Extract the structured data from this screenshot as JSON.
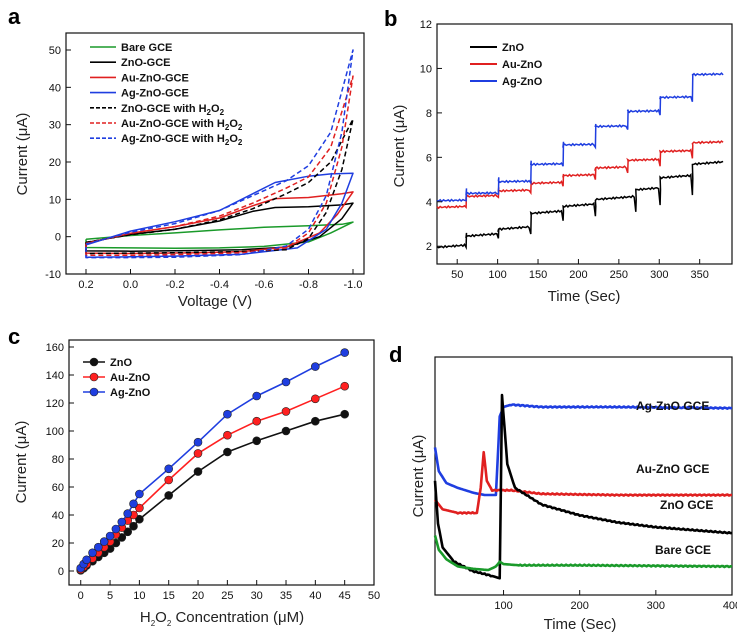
{
  "chart_data": [
    {
      "id": "a",
      "panel_label": "a",
      "type": "line",
      "xlabel": "Voltage (V)",
      "ylabel": "Current (μA)",
      "xlim": [
        0.2,
        -1.0
      ],
      "ylim": [
        -10,
        50
      ],
      "x_ticks": [
        0.2,
        0.0,
        -0.2,
        -0.4,
        -0.6,
        -0.8,
        -1.0
      ],
      "x_tick_labels": [
        "0.2",
        "0.0",
        "-0.2",
        "-0.4",
        "-0.6",
        "-0.8",
        "-1.0"
      ],
      "y_ticks": [
        -10,
        0,
        10,
        20,
        30,
        40,
        50
      ],
      "grid": false,
      "legend_position": "top-left",
      "series": [
        {
          "name": "Bare GCE",
          "color": "#1a9a2a",
          "dash": false,
          "upper": [
            [
              0.2,
              -0.7
            ],
            [
              0.0,
              0.3
            ],
            [
              -0.2,
              1.0
            ],
            [
              -0.4,
              1.8
            ],
            [
              -0.6,
              2.5
            ],
            [
              -0.8,
              2.9
            ],
            [
              -0.95,
              3.3
            ],
            [
              -1.0,
              3.9
            ]
          ],
          "lower": [
            [
              -1.0,
              3.9
            ],
            [
              -0.9,
              1.0
            ],
            [
              -0.8,
              -1.4
            ],
            [
              -0.6,
              -2.6
            ],
            [
              -0.4,
              -3.0
            ],
            [
              -0.2,
              -3.1
            ],
            [
              0.0,
              -3.0
            ],
            [
              0.2,
              -2.9
            ],
            [
              0.2,
              -0.7
            ]
          ]
        },
        {
          "name": "ZnO-GCE",
          "color": "#000000",
          "dash": false,
          "upper": [
            [
              0.2,
              -1.6
            ],
            [
              0.0,
              0.6
            ],
            [
              -0.2,
              2.0
            ],
            [
              -0.4,
              4.2
            ],
            [
              -0.55,
              6.8
            ],
            [
              -0.65,
              7.8
            ],
            [
              -0.8,
              8.0
            ],
            [
              -0.95,
              8.5
            ],
            [
              -1.0,
              9.0
            ]
          ],
          "lower": [
            [
              -1.0,
              9.0
            ],
            [
              -0.95,
              4.8
            ],
            [
              -0.85,
              0.0
            ],
            [
              -0.7,
              -2.8
            ],
            [
              -0.5,
              -3.5
            ],
            [
              -0.3,
              -3.7
            ],
            [
              0.0,
              -3.9
            ],
            [
              0.2,
              -3.8
            ],
            [
              0.2,
              -1.6
            ]
          ]
        },
        {
          "name": "Au-ZnO-GCE",
          "color": "#e02020",
          "dash": false,
          "upper": [
            [
              0.2,
              -1.8
            ],
            [
              0.0,
              0.9
            ],
            [
              -0.2,
              2.7
            ],
            [
              -0.4,
              5.0
            ],
            [
              -0.55,
              8.3
            ],
            [
              -0.65,
              10.2
            ],
            [
              -0.8,
              10.5
            ],
            [
              -0.95,
              11.5
            ],
            [
              -1.0,
              12.0
            ]
          ],
          "lower": [
            [
              -1.0,
              12.0
            ],
            [
              -0.93,
              6.0
            ],
            [
              -0.85,
              1.0
            ],
            [
              -0.7,
              -2.8
            ],
            [
              -0.5,
              -4.0
            ],
            [
              -0.3,
              -4.3
            ],
            [
              0.0,
              -4.5
            ],
            [
              0.2,
              -4.4
            ],
            [
              0.2,
              -1.8
            ]
          ]
        },
        {
          "name": "Ag-ZnO-GCE",
          "color": "#1f3ee0",
          "dash": false,
          "upper": [
            [
              0.2,
              -2.2
            ],
            [
              0.0,
              1.5
            ],
            [
              -0.2,
              4.0
            ],
            [
              -0.4,
              7.0
            ],
            [
              -0.55,
              11.5
            ],
            [
              -0.65,
              14.5
            ],
            [
              -0.8,
              16.2
            ],
            [
              -0.9,
              16.8
            ],
            [
              -1.0,
              17.0
            ]
          ],
          "lower": [
            [
              -1.0,
              17.0
            ],
            [
              -0.95,
              9.0
            ],
            [
              -0.88,
              2.0
            ],
            [
              -0.75,
              -3.0
            ],
            [
              -0.5,
              -4.7
            ],
            [
              -0.2,
              -5.2
            ],
            [
              0.0,
              -5.4
            ],
            [
              0.2,
              -5.5
            ],
            [
              0.2,
              -2.2
            ]
          ]
        },
        {
          "name": "ZnO-GCE with H2O2",
          "color": "#000000",
          "dash": true,
          "upper": [
            [
              0.2,
              -1.5
            ],
            [
              0.0,
              0.5
            ],
            [
              -0.2,
              2.0
            ],
            [
              -0.4,
              4.5
            ],
            [
              -0.55,
              7.5
            ],
            [
              -0.7,
              11.5
            ],
            [
              -0.8,
              14.5
            ],
            [
              -0.9,
              20.0
            ],
            [
              -1.0,
              31.5
            ]
          ],
          "lower": [
            [
              -1.0,
              31.5
            ],
            [
              -0.95,
              18.0
            ],
            [
              -0.88,
              6.5
            ],
            [
              -0.8,
              -0.5
            ],
            [
              -0.7,
              -3.5
            ],
            [
              -0.5,
              -4.0
            ],
            [
              -0.2,
              -4.3
            ],
            [
              0.0,
              -4.4
            ],
            [
              0.2,
              -4.5
            ],
            [
              0.2,
              -1.5
            ]
          ]
        },
        {
          "name": "Au-ZnO-GCE with H2O2",
          "color": "#e02020",
          "dash": true,
          "upper": [
            [
              0.2,
              -1.8
            ],
            [
              0.0,
              0.9
            ],
            [
              -0.2,
              2.7
            ],
            [
              -0.4,
              5.5
            ],
            [
              -0.55,
              9.0
            ],
            [
              -0.7,
              13.0
            ],
            [
              -0.8,
              16.0
            ],
            [
              -0.9,
              24.0
            ],
            [
              -1.0,
              43.0
            ]
          ],
          "lower": [
            [
              -1.0,
              43.0
            ],
            [
              -0.95,
              24.0
            ],
            [
              -0.88,
              9.0
            ],
            [
              -0.8,
              1.0
            ],
            [
              -0.7,
              -3.0
            ],
            [
              -0.5,
              -4.3
            ],
            [
              -0.2,
              -4.8
            ],
            [
              0.0,
              -5.0
            ],
            [
              0.2,
              -5.0
            ],
            [
              0.2,
              -1.8
            ]
          ]
        },
        {
          "name": "Ag-ZnO-GCE with H2O2",
          "color": "#1f3ee0",
          "dash": true,
          "upper": [
            [
              0.2,
              -2.0
            ],
            [
              0.0,
              1.2
            ],
            [
              -0.2,
              3.5
            ],
            [
              -0.4,
              7.0
            ],
            [
              -0.55,
              11.0
            ],
            [
              -0.7,
              15.0
            ],
            [
              -0.8,
              19.0
            ],
            [
              -0.9,
              28.0
            ],
            [
              -1.0,
              50.0
            ]
          ],
          "lower": [
            [
              -1.0,
              50.0
            ],
            [
              -0.95,
              28.0
            ],
            [
              -0.88,
              11.0
            ],
            [
              -0.8,
              2.0
            ],
            [
              -0.7,
              -2.5
            ],
            [
              -0.5,
              -4.8
            ],
            [
              -0.2,
              -5.5
            ],
            [
              0.0,
              -5.6
            ],
            [
              0.2,
              -5.6
            ],
            [
              0.2,
              -2.0
            ]
          ]
        }
      ]
    },
    {
      "id": "b",
      "panel_label": "b",
      "type": "line",
      "xlabel": "Time (Sec)",
      "ylabel": "Current (μA)",
      "xlim": [
        25,
        390
      ],
      "ylim": [
        1.2,
        12
      ],
      "x_ticks": [
        50,
        100,
        150,
        200,
        250,
        300,
        350
      ],
      "y_ticks": [
        2,
        4,
        6,
        8,
        10,
        12
      ],
      "grid": false,
      "legend_position": "top-left",
      "series": [
        {
          "name": "ZnO",
          "color": "#000000",
          "start": 1.95,
          "end": 5.8,
          "steps": [
            [
              60,
              0.4
            ],
            [
              100,
              0.2
            ],
            [
              140,
              0.6
            ],
            [
              180,
              0.2
            ],
            [
              220,
              0.2
            ],
            [
              270,
              0.3
            ],
            [
              300,
              0.45
            ],
            [
              340,
              0.5
            ]
          ]
        },
        {
          "name": "Au-ZnO",
          "color": "#e02020",
          "start": 3.75,
          "end": 6.7,
          "steps": [
            [
              60,
              0.45
            ],
            [
              100,
              0.2
            ],
            [
              140,
              0.3
            ],
            [
              180,
              0.3
            ],
            [
              220,
              0.3
            ],
            [
              260,
              0.3
            ],
            [
              300,
              0.35
            ],
            [
              340,
              0.35
            ]
          ]
        },
        {
          "name": "Ag-ZnO",
          "color": "#1f3ee0",
          "start": 4.05,
          "end": 9.75,
          "steps": [
            [
              60,
              0.3
            ],
            [
              100,
              0.5
            ],
            [
              140,
              0.75
            ],
            [
              180,
              0.85
            ],
            [
              220,
              0.8
            ],
            [
              260,
              0.65
            ],
            [
              300,
              0.6
            ],
            [
              340,
              1.0
            ]
          ]
        }
      ]
    },
    {
      "id": "c",
      "panel_label": "c",
      "type": "line",
      "xlabel": "H2O2 Concentration (μM)",
      "ylabel": "Current (μA)",
      "xlim": [
        -2,
        50
      ],
      "ylim": [
        -10,
        165
      ],
      "x_ticks": [
        0,
        5,
        10,
        15,
        20,
        25,
        30,
        35,
        40,
        45,
        50
      ],
      "y_ticks": [
        0,
        20,
        40,
        60,
        80,
        100,
        120,
        140,
        160
      ],
      "grid": false,
      "legend_position": "top-left",
      "x": [
        0,
        0.5,
        1,
        2,
        3,
        4,
        5,
        6,
        7,
        8,
        9,
        10,
        15,
        20,
        25,
        30,
        35,
        40,
        45
      ],
      "series": [
        {
          "name": "ZnO",
          "color": "#111111",
          "values": [
            0.5,
            2,
            4,
            7,
            10,
            13,
            16,
            20,
            24,
            28,
            32,
            37,
            54,
            71,
            85,
            93,
            100,
            107,
            112
          ]
        },
        {
          "name": "Au-ZnO",
          "color": "#ff2020",
          "values": [
            1,
            3,
            5,
            9,
            13,
            17,
            21,
            26,
            31,
            36,
            40,
            45,
            65,
            84,
            97,
            107,
            114,
            123,
            132
          ]
        },
        {
          "name": "Ag-ZnO",
          "color": "#1f3ee0",
          "values": [
            2,
            5,
            8,
            13,
            17,
            21,
            25,
            30,
            35,
            41,
            48,
            55,
            73,
            92,
            112,
            125,
            135,
            146,
            156
          ]
        }
      ]
    },
    {
      "id": "d",
      "panel_label": "d",
      "type": "line",
      "xlabel": "Time (Sec)",
      "ylabel": "Current (μA)",
      "xlim": [
        10,
        400
      ],
      "ylim": [
        0,
        100
      ],
      "x_ticks": [
        100,
        200,
        300,
        400
      ],
      "grid": false,
      "series": [
        {
          "name": "Ag-ZnO GCE",
          "color": "#1f3ee0",
          "points": [
            [
              10,
              62
            ],
            [
              15,
              52
            ],
            [
              25,
              47
            ],
            [
              40,
              45
            ],
            [
              60,
              43
            ],
            [
              75,
              42
            ],
            [
              90,
              42
            ],
            [
              95,
              75
            ],
            [
              100,
              79
            ],
            [
              110,
              80
            ],
            [
              150,
              79
            ],
            [
              250,
              79
            ],
            [
              400,
              78.5
            ]
          ]
        },
        {
          "name": "Au-ZnO GCE",
          "color": "#e02020",
          "points": [
            [
              10,
              40
            ],
            [
              20,
              36
            ],
            [
              40,
              34.5
            ],
            [
              65,
              34.5
            ],
            [
              70,
              45
            ],
            [
              74,
              60
            ],
            [
              78,
              48
            ],
            [
              85,
              44
            ],
            [
              110,
              44
            ],
            [
              150,
              42.5
            ],
            [
              250,
              42
            ],
            [
              400,
              42
            ]
          ]
        },
        {
          "name": "ZnO GCE",
          "color": "#000000",
          "points": [
            [
              10,
              48
            ],
            [
              14,
              30
            ],
            [
              20,
              20
            ],
            [
              35,
              14
            ],
            [
              60,
              10
            ],
            [
              85,
              8
            ],
            [
              95,
              7
            ],
            [
              98,
              84
            ],
            [
              105,
              55
            ],
            [
              115,
              45
            ],
            [
              150,
              38
            ],
            [
              200,
              33.5
            ],
            [
              250,
              30.5
            ],
            [
              300,
              28.5
            ],
            [
              400,
              26
            ]
          ]
        },
        {
          "name": "Bare GCE",
          "color": "#1a9a2a",
          "points": [
            [
              10,
              25
            ],
            [
              15,
              19
            ],
            [
              25,
              15
            ],
            [
              40,
              12
            ],
            [
              60,
              11
            ],
            [
              80,
              10.5
            ],
            [
              90,
              12
            ],
            [
              95,
              14
            ],
            [
              100,
              13
            ],
            [
              120,
              12.5
            ],
            [
              200,
              12.5
            ],
            [
              400,
              12
            ]
          ]
        }
      ],
      "annotations": [
        "Ag-ZnO GCE",
        "Au-ZnO GCE",
        "ZnO GCE",
        "Bare GCE"
      ]
    }
  ]
}
